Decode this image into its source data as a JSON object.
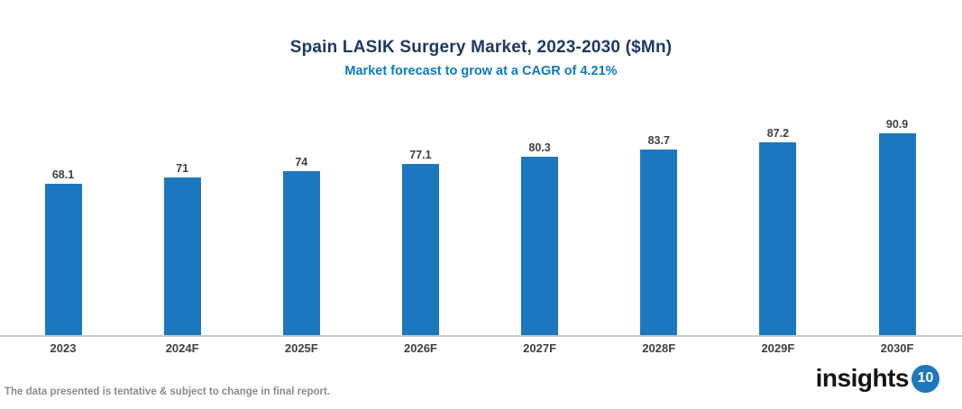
{
  "header": {
    "title": "Spain LASIK Surgery Market, 2023-2030 ($Mn)",
    "subtitle": "Market forecast to grow at a CAGR of 4.21%"
  },
  "chart_data": {
    "type": "bar",
    "title": "Spain LASIK Surgery Market, 2023-2030 ($Mn)",
    "subtitle": "Market forecast to grow at a CAGR of 4.21%",
    "categories": [
      "2023",
      "2024F",
      "2025F",
      "2026F",
      "2027F",
      "2028F",
      "2029F",
      "2030F"
    ],
    "values": [
      68.1,
      71,
      74,
      77.1,
      80.3,
      83.7,
      87.2,
      90.9
    ],
    "value_labels": [
      "68.1",
      "71",
      "74",
      "77.1",
      "80.3",
      "83.7",
      "87.2",
      "90.9"
    ],
    "xlabel": "",
    "ylabel": "",
    "ylim": [
      0,
      100
    ],
    "grid": false,
    "legend": false,
    "bar_color": "#1B78BE"
  },
  "footer": {
    "disclaimer": "The data presented is tentative & subject to change in final report.",
    "logo_text": "insights",
    "logo_badge": "10"
  },
  "colors": {
    "title": "#1F3864",
    "subtitle": "#0E7AC6",
    "bar": "#1B78BE",
    "data_label": "#404040",
    "axis_line": "#C9C9C9",
    "disclaimer": "#8A8A8A",
    "logo_text": "#141414",
    "logo_circle": "#1D77BE"
  }
}
